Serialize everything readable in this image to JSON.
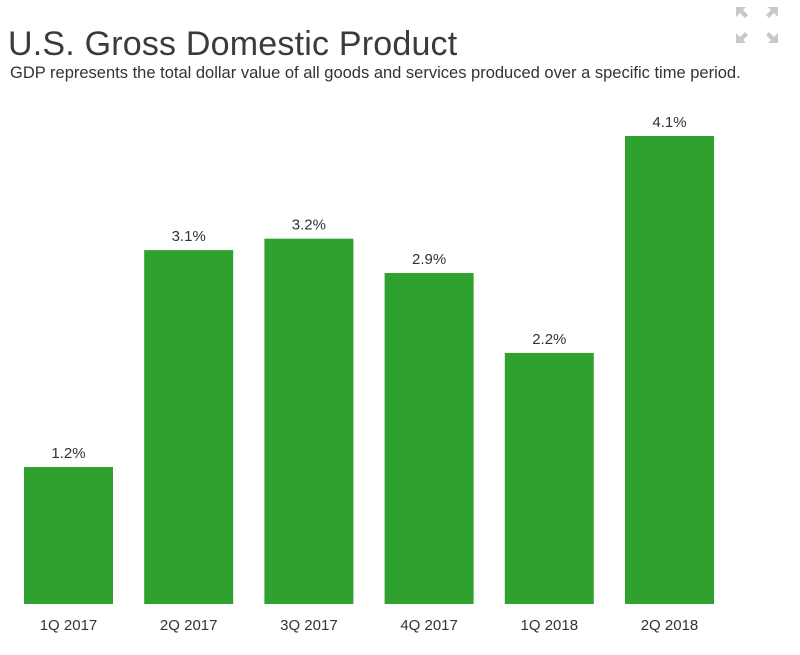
{
  "title": "U.S. Gross Domestic Product",
  "subtitle": "GDP represents the total dollar value of all goods and services produced over a specific time period.",
  "expand_icon": "expand-arrows-icon",
  "colors": {
    "bar": "#2ea12e",
    "text": "#333333",
    "icon": "#c8c8c8"
  },
  "chart_data": {
    "type": "bar",
    "title": "U.S. Gross Domestic Product",
    "xlabel": "",
    "ylabel": "",
    "categories": [
      "1Q 2017",
      "2Q 2017",
      "3Q 2017",
      "4Q 2017",
      "1Q 2018",
      "2Q 2018"
    ],
    "values": [
      1.2,
      3.1,
      3.2,
      2.9,
      2.2,
      4.1
    ],
    "data_labels": [
      "1.2%",
      "3.1%",
      "3.2%",
      "2.9%",
      "2.2%",
      "4.1%"
    ],
    "ylim": [
      0,
      4.1
    ],
    "grid": false,
    "legend": "none"
  }
}
